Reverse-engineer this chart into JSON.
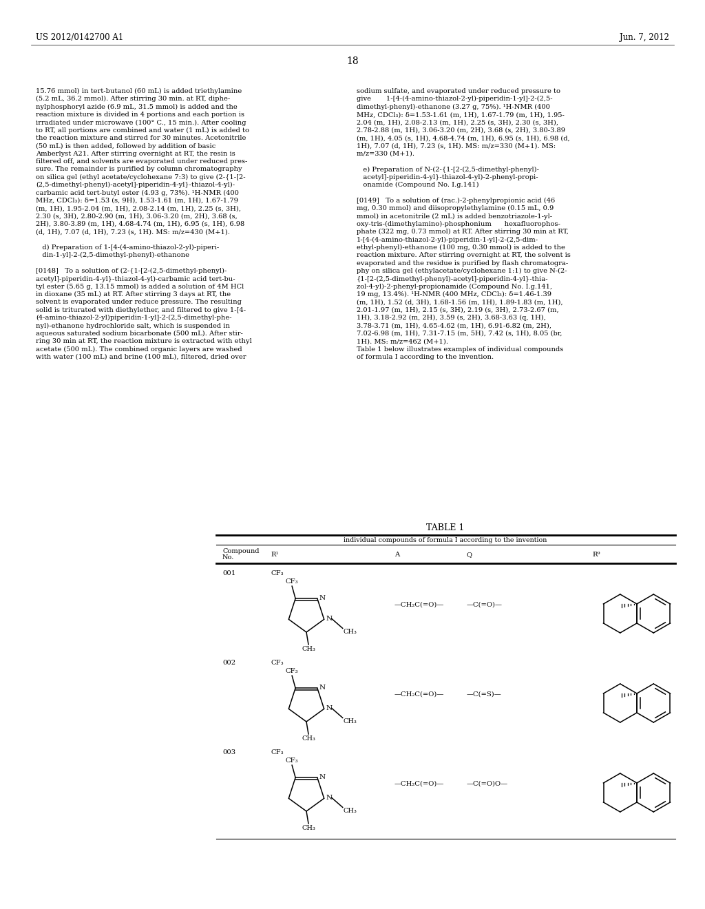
{
  "patent_number": "US 2012/0142700 A1",
  "patent_date": "Jun. 7, 2012",
  "page_number": "18",
  "background_color": "#ffffff",
  "left_lines": [
    "15.76 mmol) in tert-butanol (60 mL) is added triethylamine",
    "(5.2 mL, 36.2 mmol). After stirring 30 min. at RT, diphe-",
    "nylphosphoryl azide (6.9 mL, 31.5 mmol) is added and the",
    "reaction mixture is divided in 4 portions and each portion is",
    "irradiated under microwave (100° C., 15 min.). After cooling",
    "to RT, all portions are combined and water (1 mL) is added to",
    "the reaction mixture and stirred for 30 minutes. Acetonitrile",
    "(50 mL) is then added, followed by addition of basic",
    "Amberlyst A21. After stirring overnight at RT, the resin is",
    "filtered off, and solvents are evaporated under reduced pres-",
    "sure. The remainder is purified by column chromatography",
    "on silica gel (ethyl acetate/cyclohexane 7:3) to give (2-{1-[2-",
    "(2,5-dimethyl-phenyl)-acetyl]-piperidin-4-yl}-thiazol-4-yl)-",
    "carbamic acid tert-butyl ester (4.93 g, 73%). ¹H-NMR (400",
    "MHz, CDCl₃): δ=1.53 (s, 9H), 1.53-1.61 (m, 1H), 1.67-1.79",
    "(m, 1H), 1.95-2.04 (m, 1H), 2.08-2.14 (m, 1H), 2.25 (s, 3H),",
    "2.30 (s, 3H), 2.80-2.90 (m, 1H), 3.06-3.20 (m, 2H), 3.68 (s,",
    "2H), 3.80-3.89 (m, 1H), 4.68-4.74 (m, 1H), 6.95 (s, 1H), 6.98",
    "(d, 1H), 7.07 (d, 1H), 7.23 (s, 1H). MS: m/z=430 (M+1).",
    "",
    "   d) Preparation of 1-[4-(4-amino-thiazol-2-yl)-piperi-",
    "   din-1-yl]-2-(2,5-dimethyl-phenyl)-ethanone",
    "",
    "[0148]   To a solution of (2-{1-[2-(2,5-dimethyl-phenyl)-",
    "acetyl]-piperidin-4-yl}-thiazol-4-yl)-carbamic acid tert-bu-",
    "tyl ester (5.65 g, 13.15 mmol) is added a solution of 4M HCl",
    "in dioxane (35 mL) at RT. After stirring 3 days at RT, the",
    "solvent is evaporated under reduce pressure. The resulting",
    "solid is triturated with diethylether, and filtered to give 1-[4-",
    "(4-amino-thiazol-2-yl)piperidin-1-yl]-2-(2,5-dimethyl-phe-",
    "nyl)-ethanone hydrochloride salt, which is suspended in",
    "aqueous saturated sodium bicarbonate (500 mL). After stir-",
    "ring 30 min at RT, the reaction mixture is extracted with ethyl",
    "acetate (500 mL). The combined organic layers are washed",
    "with water (100 mL) and brine (100 mL), filtered, dried over"
  ],
  "right_lines": [
    "sodium sulfate, and evaporated under reduced pressure to",
    "give       1-[4-(4-amino-thiazol-2-yl)-piperidin-1-yl]-2-(2,5-",
    "dimethyl-phenyl)-ethanone (3.27 g, 75%). ¹H-NMR (400",
    "MHz, CDCl₃): δ=1.53-1.61 (m, 1H), 1.67-1.79 (m, 1H), 1.95-",
    "2.04 (m, 1H), 2.08-2.13 (m, 1H), 2.25 (s, 3H), 2.30 (s, 3H),",
    "2.78-2.88 (m, 1H), 3.06-3.20 (m, 2H), 3.68 (s, 2H), 3.80-3.89",
    "(m, 1H), 4.05 (s, 1H), 4.68-4.74 (m, 1H), 6.95 (s, 1H), 6.98 (d,",
    "1H), 7.07 (d, 1H), 7.23 (s, 1H). MS: m/z=330 (M+1). MS:",
    "m/z=330 (M+1).",
    "",
    "   e) Preparation of N-(2-{1-[2-(2,5-dimethyl-phenyl)-",
    "   acetyl]-piperidin-4-yl}-thiazol-4-yl)-2-phenyl-propi-",
    "   onamide (Compound No. I.g.141)",
    "",
    "[0149]   To a solution of (rac.)-2-phenylpropionic acid (46",
    "mg, 0.30 mmol) and diisopropylethylamine (0.15 mL, 0.9",
    "mmol) in acetonitrile (2 mL) is added benzotriazole-1-yl-",
    "oxy-tris-(dimethylamino)-phosphonium      hexafluorophos-",
    "phate (322 mg, 0.73 mmol) at RT. After stirring 30 min at RT,",
    "1-[4-(4-amino-thiazol-2-yl)-piperidin-1-yl]-2-(2,5-dim-",
    "ethyl-phenyl)-ethanone (100 mg, 0.30 mmol) is added to the",
    "reaction mixture. After stirring overnight at RT, the solvent is",
    "evaporated and the residue is purified by flash chromatogra-",
    "phy on silica gel (ethylacetate/cyclohexane 1:1) to give N-(2-",
    "{1-[2-(2,5-dimethyl-phenyl)-acetyl]-piperidin-4-yl}-thia-",
    "zol-4-yl)-2-phenyl-propionamide (Compound No. I.g.141,",
    "19 mg, 13.4%). ¹H-NMR (400 MHz, CDCl₃): δ=1.46-1.39",
    "(m, 1H), 1.52 (d, 3H), 1.68-1.56 (m, 1H), 1.89-1.83 (m, 1H),",
    "2.01-1.97 (m, 1H), 2.15 (s, 3H), 2.19 (s, 3H), 2.73-2.67 (m,",
    "1H), 3.18-2.92 (m, 2H), 3.59 (s, 2H), 3.68-3.63 (q, 1H),",
    "3.78-3.71 (m, 1H), 4.65-4.62 (m, 1H), 6.91-6.82 (m, 2H),",
    "7.02-6.98 (m, 1H), 7.31-7.15 (m, 5H), 7.42 (s, 1H), 8.05 (br,",
    "1H). MS: m/z=462 (M+1).",
    "Table 1 below illustrates examples of individual compounds",
    "of formula I according to the invention."
  ],
  "table_title": "TABLE 1",
  "table_subtitle": "individual compounds of formula I according to the invention",
  "compounds": [
    "001",
    "002",
    "003"
  ],
  "R1": [
    "CF₃",
    "CF₃",
    "CF₃"
  ],
  "A": [
    "—CH₂C(=O)—",
    "—CH₂C(=O)—",
    "—CH₂C(=O)—"
  ],
  "Q": [
    "—C(=O)—",
    "—C(=S)—",
    "—C(=O)O—"
  ]
}
